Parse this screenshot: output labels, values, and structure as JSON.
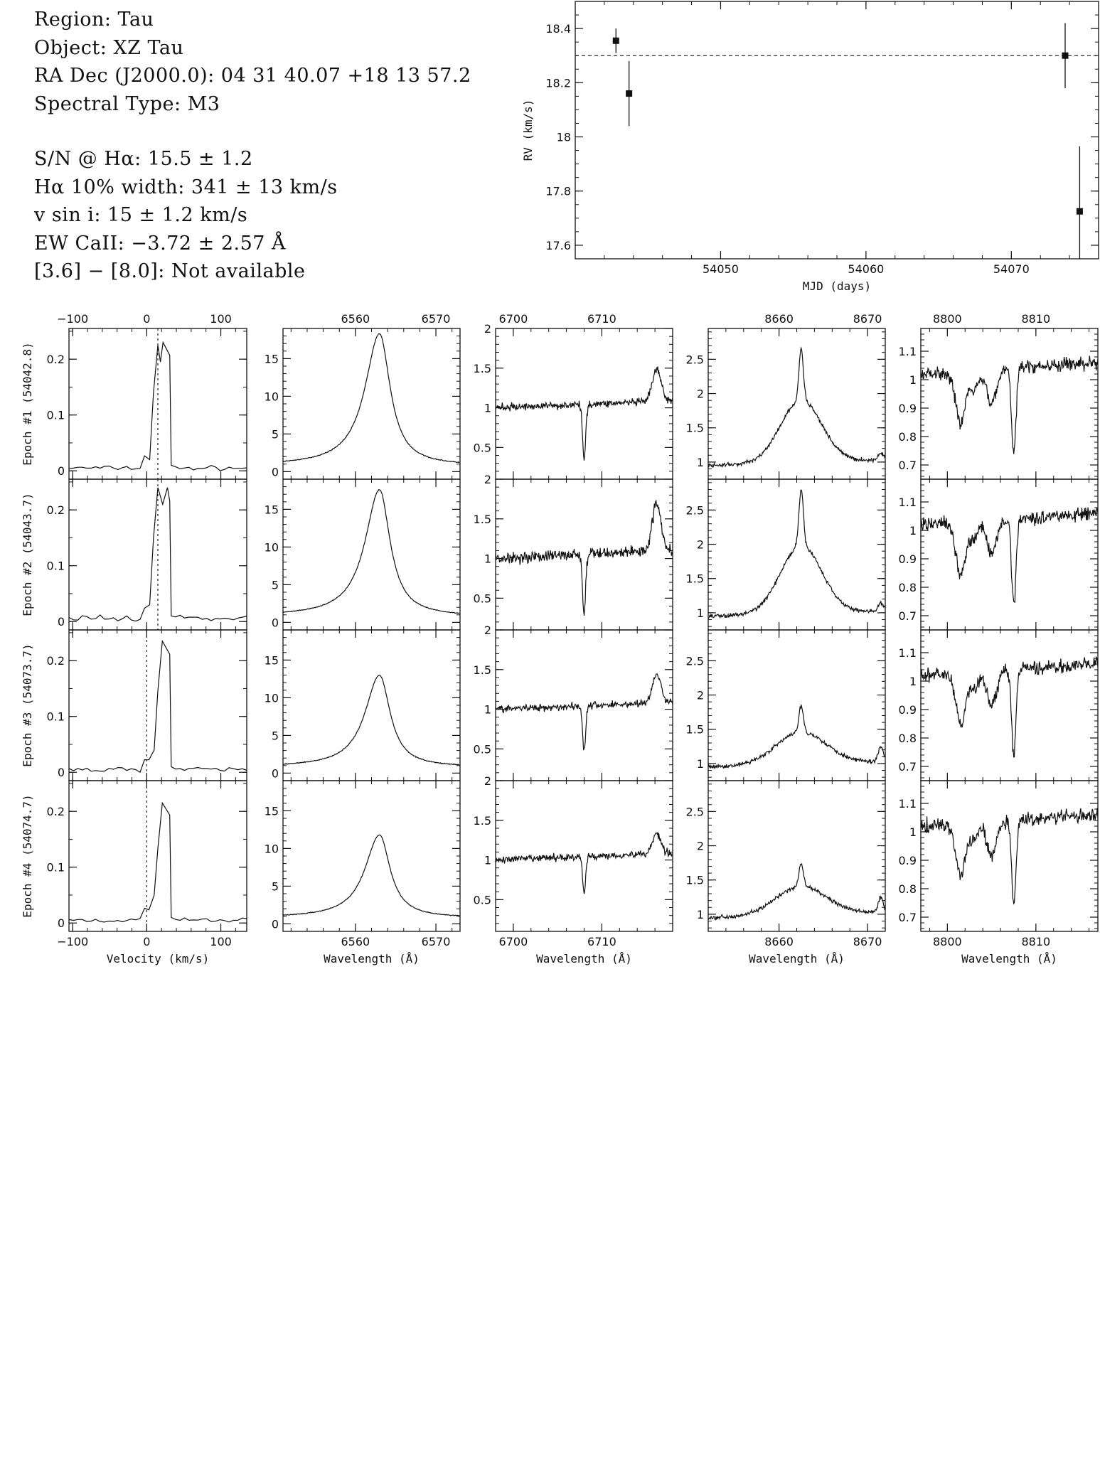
{
  "info": {
    "region": "Region: Tau",
    "object": "Object: XZ Tau",
    "radec": "RA Dec (J2000.0): 04 31 40.07 +18 13 57.2",
    "sptype": "Spectral Type: M3",
    "sn": "S/N @ Hα: 15.5 ± 1.2",
    "ha_width": "Hα 10% width: 341 ± 13 km/s",
    "vsini": "v sin i: 15 ± 1.2 km/s",
    "ew_caii": "EW CaII: −3.72 ± 2.57 Å",
    "irac": "[3.6] − [8.0]: Not available"
  },
  "chart_data": [
    {
      "type": "scatter",
      "panel": "rv",
      "xlabel": "MJD (days)",
      "ylabel": "RV (km/s)",
      "xlim": [
        54040,
        54076
      ],
      "ylim": [
        17.55,
        18.5
      ],
      "xticks": [
        54050,
        54060,
        54070
      ],
      "yticks": [
        17.6,
        17.8,
        18,
        18.2,
        18.4
      ],
      "ytick_labels": [
        "17.6",
        "17.8",
        "18",
        "18.2",
        "18.4"
      ],
      "reference_line": 18.3,
      "points": [
        {
          "x": 54042.8,
          "y": 18.355,
          "err": 0.045
        },
        {
          "x": 54043.7,
          "y": 18.16,
          "err": 0.12
        },
        {
          "x": 54073.7,
          "y": 18.3,
          "err": 0.12
        },
        {
          "x": 54074.7,
          "y": 17.725,
          "err": 0.24
        }
      ]
    },
    {
      "type": "line",
      "panel": "velocity",
      "xlabel": "Velocity (km/s)",
      "xlim": [
        -105,
        135
      ],
      "ylim": [
        -0.015,
        0.255
      ],
      "xticks": [
        -100,
        0,
        100
      ],
      "yticks": [
        0,
        0.1,
        0.2
      ],
      "ytick_labels": [
        "0",
        "0.1",
        "0.2"
      ],
      "epochs": [
        {
          "label": "Epoch #1 (54042.8)",
          "marker": 15,
          "peaks": [
            [
              15,
              0.225
            ],
            [
              22,
              0.23
            ]
          ]
        },
        {
          "label": "Epoch #2 (54043.7)",
          "marker": 15,
          "peaks": [
            [
              15,
              0.24
            ],
            [
              28,
              0.24
            ]
          ]
        },
        {
          "label": "Epoch #3 (54073.7)",
          "marker": 0,
          "peaks": [
            [
              21,
              0.235
            ]
          ]
        },
        {
          "label": "Epoch #4 (54074.7)",
          "marker": 0,
          "peaks": [
            [
              21,
              0.215
            ]
          ]
        }
      ]
    },
    {
      "type": "line",
      "panel": "halpha",
      "xlabel": "Wavelength (Å)",
      "xlim": [
        6551,
        6573
      ],
      "ylim": [
        -1,
        19
      ],
      "xticks": [
        6560,
        6570
      ],
      "yticks": [
        0,
        5,
        10,
        15
      ],
      "ytick_labels": [
        "0",
        "5",
        "10",
        "15"
      ],
      "center": 6563,
      "peak_heights": [
        17.5,
        16.8,
        12.2,
        11.0
      ]
    },
    {
      "type": "line",
      "panel": "lithium",
      "xlabel": "Wavelength (Å)",
      "xlim": [
        6698,
        6718
      ],
      "ylim": [
        0.1,
        2.0
      ],
      "xticks": [
        6700,
        6710
      ],
      "yticks": [
        0.5,
        1,
        1.5,
        2
      ],
      "ytick_labels": [
        "0.5",
        "1",
        "1.5",
        "2"
      ],
      "absorption": 6708,
      "absorption_depth": [
        0.7,
        0.75,
        0.55,
        0.45
      ],
      "emission_peak": [
        1.6,
        1.8,
        1.55,
        1.45
      ]
    },
    {
      "type": "line",
      "panel": "caii_8662",
      "xlabel": "Wavelength (Å)",
      "xlim": [
        8652,
        8672
      ],
      "ylim": [
        0.75,
        2.95
      ],
      "xticks": [
        8660,
        8670
      ],
      "yticks": [
        1,
        1.5,
        2,
        2.5
      ],
      "ytick_labels": [
        "1",
        "1.5",
        "2",
        "2.5"
      ],
      "center": 8662.5,
      "peak_heights": [
        2.65,
        2.8,
        1.85,
        1.75
      ]
    },
    {
      "type": "line",
      "panel": "caii_8808",
      "xlabel": "Wavelength (Å)",
      "xlim": [
        8797,
        8817
      ],
      "ylim": [
        0.65,
        1.18
      ],
      "xticks": [
        8800,
        8810
      ],
      "yticks": [
        0.7,
        0.8,
        0.9,
        1,
        1.1
      ],
      "ytick_labels": [
        "0.7",
        "0.8",
        "0.9",
        "1",
        "1.1"
      ],
      "absorptions": [
        [
          8801.5,
          0.18
        ],
        [
          8805.0,
          0.12
        ],
        [
          8807.5,
          0.3
        ]
      ]
    }
  ]
}
